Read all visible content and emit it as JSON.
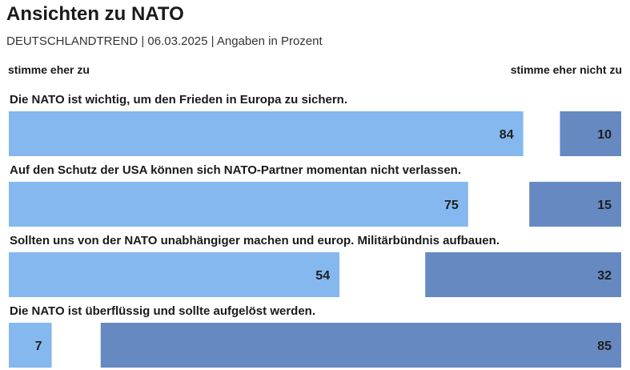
{
  "header": {
    "title": "Ansichten zu NATO",
    "subtitle": "DEUTSCHLANDTREND | 06.03.2025 | Angaben in Prozent"
  },
  "legend": {
    "agree": "stimme eher zu",
    "disagree": "stimme eher nicht zu"
  },
  "chart_data": {
    "type": "bar",
    "title": "Ansichten zu NATO",
    "subtitle": "DEUTSCHLANDTREND | 06.03.2025 | Angaben in Prozent",
    "categories": [
      "Die NATO ist wichtig, um den Frieden in Europa zu sichern.",
      "Auf den Schutz der USA können sich NATO-Partner momentan nicht verlassen.",
      "Sollten uns von der NATO unabhängiger machen und europ. Militärbündnis aufbauen.",
      "Die NATO ist überflüssig und sollte aufgelöst werden."
    ],
    "series": [
      {
        "name": "stimme eher zu",
        "values": [
          84,
          75,
          54,
          7
        ],
        "color": "#84b8ee"
      },
      {
        "name": "stimme eher nicht zu",
        "values": [
          10,
          15,
          32,
          85
        ],
        "color": "#6689c1"
      }
    ],
    "ylim": [
      0,
      100
    ],
    "legend_placement": "top",
    "grid": false
  }
}
